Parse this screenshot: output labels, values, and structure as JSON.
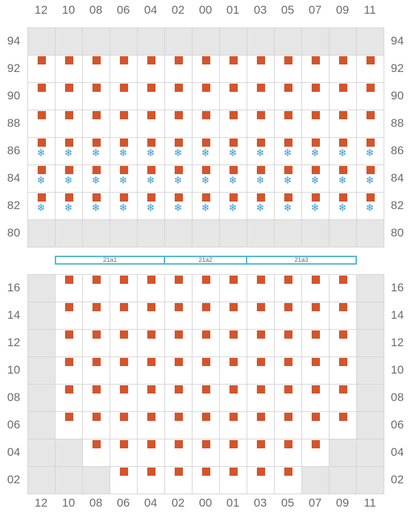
{
  "columns": [
    "12",
    "10",
    "08",
    "06",
    "04",
    "02",
    "00",
    "01",
    "03",
    "05",
    "07",
    "09",
    "11"
  ],
  "colors": {
    "marker": "#d4542c",
    "reefer": "#3d9bd6",
    "unavailable": "#e6e6e6",
    "hatch_border": "#4fb6d6"
  },
  "icons": {
    "marker": "square-marker-icon",
    "reefer": "snowflake-icon",
    "reefer_glyph": "❄"
  },
  "upper": {
    "tiers": [
      {
        "label": "94",
        "cells": "-------------"
      },
      {
        "label": "92",
        "cells": "MMMMMMMMMMMMM"
      },
      {
        "label": "90",
        "cells": "MMMMMMMMMMMMM"
      },
      {
        "label": "88",
        "cells": "MMMMMMMMMMMMM"
      },
      {
        "label": "86",
        "cells": "RRRRRRRRRRRRR"
      },
      {
        "label": "84",
        "cells": "RRRRRRRRRRRRR"
      },
      {
        "label": "82",
        "cells": "RRRRRRRRRRRRR"
      },
      {
        "label": "80",
        "cells": "-------------"
      }
    ]
  },
  "hatch_covers": [
    {
      "label": "21a1",
      "span": [
        1,
        4
      ]
    },
    {
      "label": "21a2",
      "span": [
        5,
        7
      ]
    },
    {
      "label": "21a3",
      "span": [
        8,
        11
      ]
    }
  ],
  "lower": {
    "tiers": [
      {
        "label": "16",
        "cells": "-MMMMMMMMMMM-"
      },
      {
        "label": "14",
        "cells": "-MMMMMMMMMMM-"
      },
      {
        "label": "12",
        "cells": "-MMMMMMMMMMM-"
      },
      {
        "label": "10",
        "cells": "-MMMMMMMMMMM-"
      },
      {
        "label": "08",
        "cells": "-MMMMMMMMMMM-"
      },
      {
        "label": "06",
        "cells": "-MMMMMMMMMMM-"
      },
      {
        "label": "04",
        "cells": "--MMMMMMMMM--"
      },
      {
        "label": "02",
        "cells": "---MMMMMMM---"
      }
    ]
  }
}
